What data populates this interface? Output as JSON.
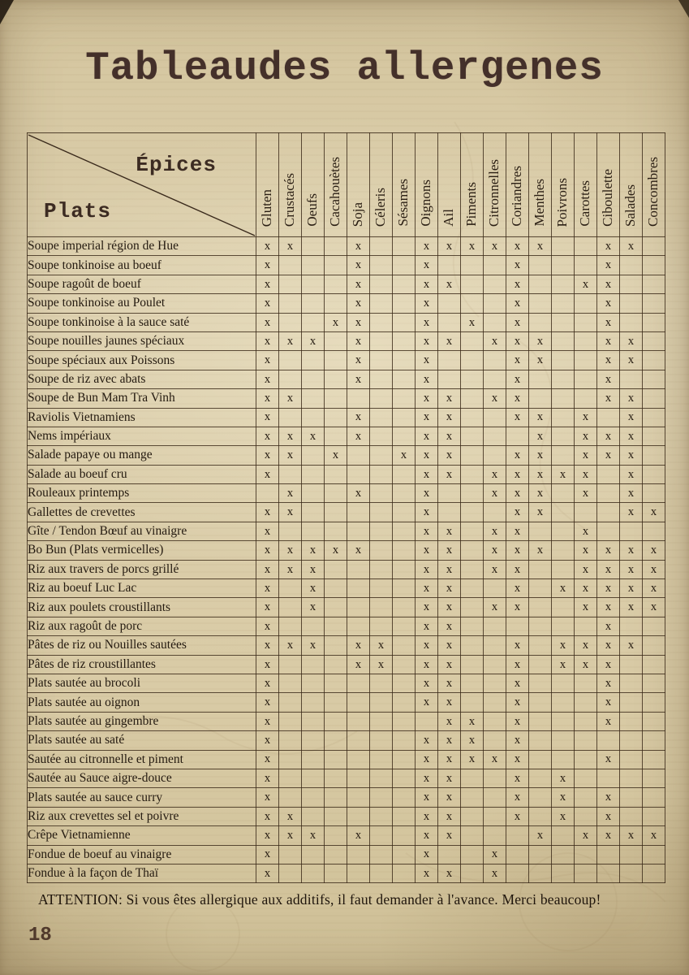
{
  "page": {
    "title": "Tableaudes allergenes",
    "footer_note": "ATTENTION: Si vous êtes allergique aux additifs, il faut demander à l'avance. Merci beaucoup!",
    "page_number": "18"
  },
  "colors": {
    "paper": "#d8c9a3",
    "ink": "#241a10",
    "title_ink": "#44302a",
    "grid_line": "#3a2919",
    "page_number_ink": "#50392b"
  },
  "table": {
    "corner": {
      "columns_axis_label": "Épices",
      "rows_axis_label": "Plats"
    },
    "mark_glyph": "x",
    "columns": [
      "Gluten",
      "Crustacés",
      "Oeufs",
      "Cacahouètes",
      "Soja",
      "Céleris",
      "Sésames",
      "Oignons",
      "Ail",
      "Piments",
      "Citronnelles",
      "Coriandres",
      "Menthes",
      "Poivrons",
      "Carottes",
      "Ciboulette",
      "Salades",
      "Concombres"
    ],
    "rows": [
      {
        "dish": "Soupe imperial région de Hue",
        "allergens": [
          0,
          1,
          4,
          7,
          8,
          9,
          10,
          11,
          12,
          15,
          16
        ]
      },
      {
        "dish": "Soupe tonkinoise  au boeuf",
        "allergens": [
          0,
          4,
          7,
          11,
          15
        ]
      },
      {
        "dish": "Soupe ragoût de boeuf",
        "allergens": [
          0,
          4,
          7,
          8,
          11,
          14,
          15
        ]
      },
      {
        "dish": "Soupe tonkinoise au Poulet",
        "allergens": [
          0,
          4,
          7,
          11,
          15
        ]
      },
      {
        "dish": "Soupe tonkinoise à la sauce saté",
        "allergens": [
          0,
          3,
          4,
          7,
          9,
          11,
          15
        ]
      },
      {
        "dish": "Soupe nouilles jaunes spéciaux",
        "allergens": [
          0,
          1,
          2,
          4,
          7,
          8,
          10,
          11,
          12,
          15,
          16
        ]
      },
      {
        "dish": "Soupe spéciaux aux Poissons",
        "allergens": [
          0,
          4,
          7,
          11,
          12,
          15,
          16
        ]
      },
      {
        "dish": "Soupe de riz avec abats",
        "allergens": [
          0,
          4,
          7,
          11,
          15
        ]
      },
      {
        "dish": "Soupe de Bun Mam Tra Vinh",
        "allergens": [
          0,
          1,
          7,
          8,
          10,
          11,
          15,
          16
        ]
      },
      {
        "dish": "Raviolis Vietnamiens",
        "allergens": [
          0,
          4,
          7,
          8,
          11,
          12,
          14,
          16
        ]
      },
      {
        "dish": "Nems impériaux",
        "allergens": [
          0,
          1,
          2,
          4,
          7,
          8,
          12,
          14,
          15,
          16
        ]
      },
      {
        "dish": "Salade papaye ou mange",
        "allergens": [
          0,
          1,
          3,
          6,
          7,
          8,
          11,
          12,
          14,
          15,
          16
        ]
      },
      {
        "dish": "Salade au boeuf cru",
        "allergens": [
          0,
          7,
          8,
          10,
          11,
          12,
          13,
          14,
          16
        ]
      },
      {
        "dish": "Rouleaux printemps",
        "allergens": [
          1,
          4,
          7,
          10,
          11,
          12,
          14,
          16
        ]
      },
      {
        "dish": "Gallettes de crevettes",
        "allergens": [
          0,
          1,
          7,
          11,
          12,
          16,
          17
        ]
      },
      {
        "dish": "Gîte / Tendon Bœuf au vinaigre",
        "allergens": [
          0,
          7,
          8,
          10,
          11,
          14
        ]
      },
      {
        "dish": "Bo Bun (Plats vermicelles)",
        "allergens": [
          0,
          1,
          2,
          3,
          4,
          7,
          8,
          10,
          11,
          12,
          14,
          15,
          16,
          17
        ]
      },
      {
        "dish": "Riz aux travers de porcs grillé",
        "allergens": [
          0,
          1,
          2,
          7,
          8,
          10,
          11,
          14,
          15,
          16,
          17
        ]
      },
      {
        "dish": "Riz au boeuf Luc Lac",
        "allergens": [
          0,
          2,
          7,
          8,
          11,
          13,
          14,
          15,
          16,
          17
        ]
      },
      {
        "dish": "Riz aux poulets croustillants",
        "allergens": [
          0,
          2,
          7,
          8,
          10,
          11,
          14,
          15,
          16,
          17
        ]
      },
      {
        "dish": "Riz aux ragoût de porc",
        "allergens": [
          0,
          7,
          8,
          15
        ]
      },
      {
        "dish": "Pâtes de riz ou Nouilles sautées",
        "allergens": [
          0,
          1,
          2,
          4,
          5,
          7,
          8,
          11,
          13,
          14,
          15,
          16
        ]
      },
      {
        "dish": "Pâtes de riz croustillantes",
        "allergens": [
          0,
          4,
          5,
          7,
          8,
          11,
          13,
          14,
          15
        ]
      },
      {
        "dish": "Plats sautée au brocoli",
        "allergens": [
          0,
          7,
          8,
          11,
          15
        ]
      },
      {
        "dish": "Plats sautée au oignon",
        "allergens": [
          0,
          7,
          8,
          11,
          15
        ]
      },
      {
        "dish": "Plats sautée au gingembre",
        "allergens": [
          0,
          8,
          9,
          11,
          15
        ]
      },
      {
        "dish": "Plats sautée au saté",
        "allergens": [
          0,
          7,
          8,
          9,
          11
        ]
      },
      {
        "dish": "Sautée au citronnelle et piment",
        "allergens": [
          0,
          7,
          8,
          9,
          10,
          11,
          15
        ]
      },
      {
        "dish": "Sautée au Sauce aigre-douce",
        "allergens": [
          0,
          7,
          8,
          11,
          13
        ]
      },
      {
        "dish": "Plats sautée au sauce curry",
        "allergens": [
          0,
          7,
          8,
          11,
          13,
          15
        ]
      },
      {
        "dish": "Riz aux crevettes sel et poivre",
        "allergens": [
          0,
          1,
          7,
          8,
          11,
          13,
          15
        ]
      },
      {
        "dish": "Crêpe Vietnamienne",
        "allergens": [
          0,
          1,
          2,
          4,
          7,
          8,
          12,
          14,
          15,
          16,
          17
        ]
      },
      {
        "dish": "Fondue de boeuf au vinaigre",
        "allergens": [
          0,
          7,
          10
        ]
      },
      {
        "dish": "Fondue à la façon de Thaï",
        "allergens": [
          0,
          7,
          8,
          10
        ]
      }
    ]
  }
}
